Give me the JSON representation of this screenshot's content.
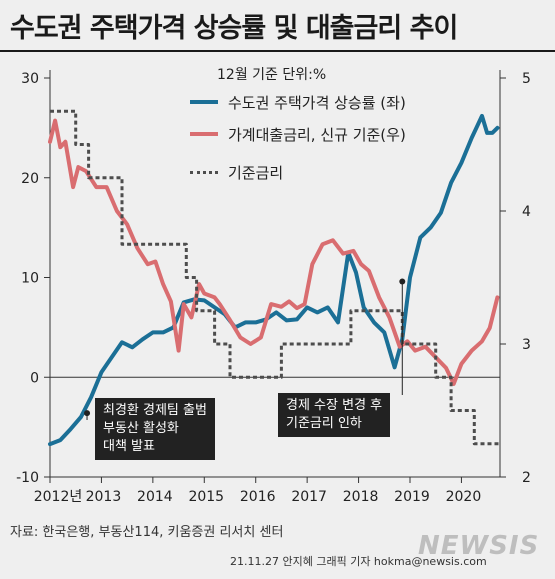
{
  "title": "수도권 주택가격 상승률 및 대출금리 추이",
  "unit_label": "12월 기준 단위:%",
  "source": "자료: 한국은행, 부동산114, 키움증권 리서치 센터",
  "credit": "21.11.27 안지혜 그래픽 기자 hokma@newsis.com",
  "watermark": "NEWSIS",
  "colors": {
    "housing": "#1b6f96",
    "loan": "#d96d70",
    "base": "#4d4d4d",
    "background": "#efefef",
    "annotation_box": "#222222"
  },
  "annotations": [
    {
      "lines": [
        "최경환 경제팀 출범",
        "부동산 활성화",
        "대책 발표"
      ]
    },
    {
      "lines": [
        "경제 수장 변경 후",
        "기준금리 인하"
      ]
    }
  ],
  "chart_data": {
    "type": "line",
    "title": "수도권 주택가격 상승률 및 대출금리 추이",
    "x_tick_labels": [
      "2012년",
      "2013",
      "2014",
      "2015",
      "2016",
      "2017",
      "2018",
      "2019",
      "2020"
    ],
    "x_range": [
      2012.0,
      2020.75
    ],
    "y_left": {
      "range": [
        -10,
        30
      ],
      "ticks": [
        "-10",
        "0",
        "10",
        "20",
        "30"
      ]
    },
    "y_right": {
      "range": [
        2,
        5
      ],
      "ticks": [
        "2",
        "3",
        "4",
        "5"
      ]
    },
    "legend_position": "top-right",
    "grid": false,
    "series": [
      {
        "name": "수도권 주택가격 상승률 (좌)",
        "axis": "left",
        "style": "solid",
        "x": [
          2012.0,
          2012.2,
          2012.4,
          2012.6,
          2012.8,
          2013.0,
          2013.2,
          2013.4,
          2013.6,
          2013.8,
          2014.0,
          2014.2,
          2014.4,
          2014.6,
          2014.8,
          2015.0,
          2015.2,
          2015.4,
          2015.6,
          2015.8,
          2016.0,
          2016.2,
          2016.4,
          2016.6,
          2016.8,
          2017.0,
          2017.2,
          2017.4,
          2017.6,
          2017.8,
          2017.95,
          2018.1,
          2018.3,
          2018.5,
          2018.7,
          2018.85,
          2019.0,
          2019.2,
          2019.4,
          2019.6,
          2019.8,
          2020.0,
          2020.2,
          2020.4,
          2020.5,
          2020.6,
          2020.7
        ],
        "values": [
          -6.7,
          -6.3,
          -5.2,
          -4.0,
          -2.0,
          0.5,
          2.0,
          3.5,
          3.0,
          3.8,
          4.5,
          4.5,
          5.0,
          7.5,
          7.8,
          7.7,
          7.0,
          6.3,
          5.0,
          5.5,
          5.5,
          5.8,
          6.5,
          5.7,
          5.8,
          7.0,
          6.5,
          7.0,
          5.5,
          12.5,
          10.5,
          7.0,
          5.5,
          4.5,
          1.0,
          3.8,
          10.0,
          14.0,
          15.0,
          16.5,
          19.5,
          21.5,
          24.0,
          26.2,
          24.5,
          24.5,
          25.0
        ]
      },
      {
        "name": "가계대출금리, 신규 기준(우)",
        "axis": "right",
        "style": "solid",
        "x": [
          2012.0,
          2012.1,
          2012.2,
          2012.3,
          2012.45,
          2012.55,
          2012.7,
          2012.9,
          2013.1,
          2013.3,
          2013.5,
          2013.7,
          2013.9,
          2014.05,
          2014.2,
          2014.35,
          2014.5,
          2014.6,
          2014.75,
          2014.9,
          2015.0,
          2015.2,
          2015.3,
          2015.5,
          2015.7,
          2015.9,
          2016.1,
          2016.3,
          2016.5,
          2016.65,
          2016.8,
          2016.95,
          2017.1,
          2017.3,
          2017.5,
          2017.7,
          2017.9,
          2018.05,
          2018.2,
          2018.4,
          2018.6,
          2018.8,
          2018.95,
          2019.1,
          2019.3,
          2019.5,
          2019.7,
          2019.85,
          2020.0,
          2020.2,
          2020.4,
          2020.55,
          2020.7
        ],
        "values": [
          4.52,
          4.68,
          4.48,
          4.52,
          4.18,
          4.33,
          4.3,
          4.18,
          4.18,
          4.0,
          3.9,
          3.72,
          3.6,
          3.62,
          3.45,
          3.32,
          2.95,
          3.3,
          3.2,
          3.45,
          3.38,
          3.35,
          3.3,
          3.18,
          3.05,
          3.0,
          3.05,
          3.3,
          3.28,
          3.32,
          3.27,
          3.3,
          3.6,
          3.75,
          3.78,
          3.68,
          3.7,
          3.6,
          3.55,
          3.35,
          3.2,
          2.98,
          3.02,
          2.95,
          2.98,
          2.9,
          2.82,
          2.7,
          2.85,
          2.95,
          3.02,
          3.12,
          3.35
        ]
      },
      {
        "name": "기준금리",
        "axis": "right",
        "style": "dotted-step",
        "x": [
          2012.0,
          2012.5,
          2012.5,
          2012.75,
          2012.75,
          2013.4,
          2013.4,
          2014.65,
          2014.65,
          2014.85,
          2014.85,
          2015.2,
          2015.2,
          2015.5,
          2015.5,
          2016.5,
          2016.5,
          2017.85,
          2017.85,
          2018.85,
          2018.85,
          2019.5,
          2019.5,
          2019.8,
          2019.8,
          2020.25,
          2020.25,
          2020.75
        ],
        "values": [
          4.75,
          4.75,
          4.5,
          4.5,
          4.25,
          4.25,
          3.75,
          3.75,
          3.5,
          3.5,
          3.25,
          3.25,
          3.0,
          3.0,
          2.75,
          2.75,
          3.0,
          3.0,
          3.25,
          3.25,
          3.0,
          3.0,
          2.75,
          2.75,
          2.5,
          2.5,
          2.25,
          2.25
        ]
      }
    ]
  }
}
